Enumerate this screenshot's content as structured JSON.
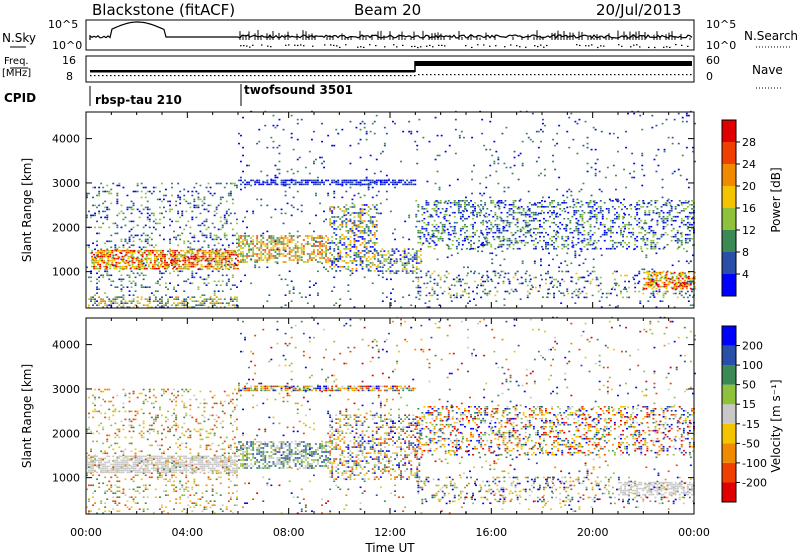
{
  "header": {
    "title": "Blackstone (fitACF)",
    "beam": "Beam 20",
    "date": "20/Jul/2013"
  },
  "top_panels": {
    "nsky_label": "N.Sky",
    "nsearch_label": "N.Search",
    "freq_label_1": "Freq.",
    "freq_label_2": "[MHz]",
    "nave_label": "Nave",
    "cpid_label": "CPID",
    "log_ticks": [
      "10^5",
      "10^0"
    ],
    "freq_ticks": [
      "16",
      "8"
    ],
    "nave_ticks": [
      "60",
      "0"
    ],
    "cpid_segments": [
      {
        "label": "rbsp-tau 210",
        "start_hr": 0,
        "end_hr": 6
      },
      {
        "label": "twofsound 3501",
        "start_hr": 6,
        "end_hr": 24
      }
    ]
  },
  "chart_data": [
    {
      "type": "heatmap",
      "quantity": "Power",
      "ylabel": "Slant Range [km]",
      "ylim": [
        180,
        4600
      ],
      "yticks": [
        1000,
        2000,
        3000,
        4000
      ],
      "xlim": [
        0,
        24
      ],
      "colorbar_label": "Power [dB]",
      "colorbar_ticks": [
        "28",
        "24",
        "20",
        "16",
        "12",
        "8",
        "4"
      ],
      "colors": [
        "#0000ff",
        "#2a4fa8",
        "#3b8a55",
        "#8fc23c",
        "#f5c400",
        "#f08a00",
        "#f04000",
        "#e00000"
      ],
      "scatter_regions": [
        {
          "t": [
            0.0,
            6.0
          ],
          "r": [
            180,
            3000
          ],
          "p": 0.16,
          "c": [
            0,
            3
          ]
        },
        {
          "t": [
            0.2,
            6.0
          ],
          "r": [
            1050,
            1500
          ],
          "p": 0.65,
          "c": [
            3,
            7
          ]
        },
        {
          "t": [
            6.0,
            9.6
          ],
          "r": [
            1200,
            1800
          ],
          "p": 0.55,
          "c": [
            2,
            6
          ]
        },
        {
          "t": [
            9.6,
            11.5
          ],
          "r": [
            1000,
            2500
          ],
          "p": 0.4,
          "c": [
            0,
            5
          ]
        },
        {
          "t": [
            11.5,
            13.2
          ],
          "r": [
            950,
            1500
          ],
          "p": 0.45,
          "c": [
            0,
            4
          ]
        },
        {
          "t": [
            13.0,
            24.0
          ],
          "r": [
            1500,
            2600
          ],
          "p": 0.3,
          "c": [
            0,
            3
          ]
        },
        {
          "t": [
            13.0,
            24.0
          ],
          "r": [
            400,
            1000
          ],
          "p": 0.16,
          "c": [
            0,
            4
          ]
        },
        {
          "t": [
            22.0,
            24.0
          ],
          "r": [
            600,
            1000
          ],
          "p": 0.55,
          "c": [
            3,
            7
          ]
        },
        {
          "t": [
            6.0,
            13.0
          ],
          "r": [
            2950,
            3050
          ],
          "p": 0.7,
          "c": [
            0,
            1
          ]
        },
        {
          "t": [
            6.0,
            24.0
          ],
          "r": [
            180,
            4600
          ],
          "p": 0.035,
          "c": [
            0,
            2
          ]
        },
        {
          "t": [
            0.0,
            6.0
          ],
          "r": [
            180,
            450
          ],
          "p": 0.35,
          "c": [
            1,
            5
          ]
        }
      ]
    },
    {
      "type": "heatmap",
      "quantity": "Velocity",
      "ylabel": "Slant Range [km]",
      "ylim": [
        180,
        4600
      ],
      "yticks": [
        1000,
        2000,
        3000,
        4000
      ],
      "xlim": [
        0,
        24
      ],
      "xticks": [
        "00:00",
        "04:00",
        "08:00",
        "12:00",
        "16:00",
        "20:00",
        "00:00"
      ],
      "xlabel": "Time UT",
      "colorbar_label": "Velocity [m s⁻¹]",
      "colorbar_ticks": [
        "200",
        "100",
        "50",
        "15",
        "-15",
        "-50",
        "-100",
        "-200"
      ],
      "colors": [
        "#e00000",
        "#f04000",
        "#f08a00",
        "#f5c400",
        "#c8c8c8",
        "#8fc23c",
        "#3b8a55",
        "#2a4fa8",
        "#0000ff"
      ],
      "scatter_regions": [
        {
          "t": [
            0.0,
            6.0
          ],
          "r": [
            1100,
            1500
          ],
          "p": 0.75,
          "c": [
            4,
            4
          ]
        },
        {
          "t": [
            0.0,
            6.0
          ],
          "r": [
            180,
            3000
          ],
          "p": 0.16,
          "c": [
            1,
            6
          ]
        },
        {
          "t": [
            6.0,
            9.6
          ],
          "r": [
            1200,
            1800
          ],
          "p": 0.55,
          "c": [
            4,
            7
          ]
        },
        {
          "t": [
            9.6,
            13.2
          ],
          "r": [
            950,
            2400
          ],
          "p": 0.35,
          "c": [
            1,
            8
          ]
        },
        {
          "t": [
            13.0,
            24.0
          ],
          "r": [
            1500,
            2600
          ],
          "p": 0.3,
          "c": [
            0,
            8
          ]
        },
        {
          "t": [
            13.0,
            24.0
          ],
          "r": [
            400,
            1000
          ],
          "p": 0.18,
          "c": [
            2,
            8
          ]
        },
        {
          "t": [
            21.0,
            24.0
          ],
          "r": [
            600,
            900
          ],
          "p": 0.6,
          "c": [
            4,
            4
          ]
        },
        {
          "t": [
            6.0,
            13.0
          ],
          "r": [
            2950,
            3050
          ],
          "p": 0.7,
          "c": [
            0,
            8
          ]
        },
        {
          "t": [
            6.0,
            24.0
          ],
          "r": [
            180,
            4600
          ],
          "p": 0.035,
          "c": [
            0,
            8
          ]
        }
      ]
    }
  ]
}
